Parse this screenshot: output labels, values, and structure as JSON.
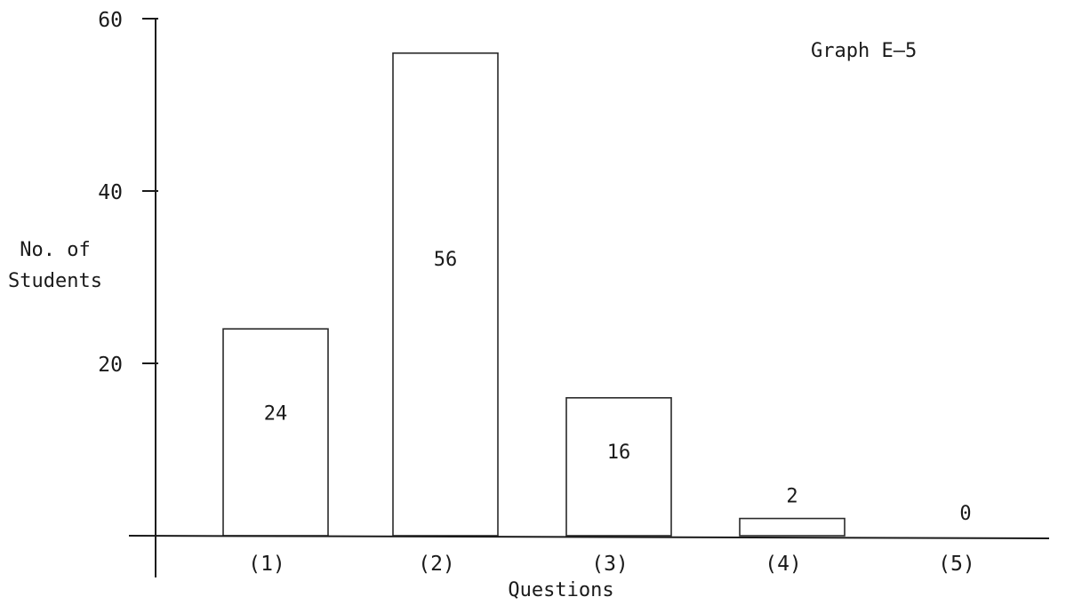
{
  "chart_data": {
    "type": "bar",
    "title": "Graph E—5",
    "xlabel": "Questions",
    "ylabel": [
      "No. of",
      "Students"
    ],
    "categories": [
      "(1)",
      "(2)",
      "(3)",
      "(4)",
      "(5)"
    ],
    "values": [
      24,
      56,
      16,
      2,
      0
    ],
    "data_labels": [
      "24",
      "56",
      "16",
      "2",
      "0"
    ],
    "ylim": [
      0,
      60
    ],
    "yticks": [
      20,
      40,
      60
    ],
    "ytick_labels": [
      "20",
      "40",
      "60"
    ],
    "grid": false,
    "legend": "none"
  }
}
